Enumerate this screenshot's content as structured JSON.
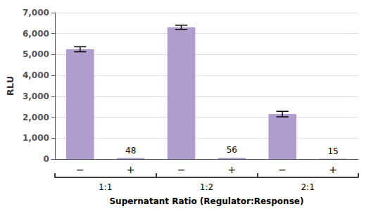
{
  "chart_data": {
    "type": "bar",
    "categories": [
      "−",
      "+",
      "−",
      "+",
      "−",
      "+"
    ],
    "group_labels": [
      "1:1",
      "1:2",
      "2:1"
    ],
    "values": [
      5250,
      48,
      6300,
      56,
      2150,
      15
    ],
    "errors": [
      120,
      0,
      100,
      0,
      130,
      0
    ],
    "value_labels": [
      null,
      "48",
      null,
      "56",
      null,
      "15"
    ],
    "color": "#b09cce",
    "ylabel": "RLU",
    "xlabel": "Supernatant Ratio (Regulator:Response)",
    "ylim": [
      0,
      7000
    ],
    "yticks": [
      0,
      {
        "value": 1000,
        "label": "1,000"
      },
      {
        "value": 2000,
        "label": "2,000"
      },
      {
        "value": 3000,
        "label": "3,000"
      },
      {
        "value": 4000,
        "label": "4,000"
      },
      {
        "value": 5000,
        "label": "5,000"
      },
      {
        "value": 6000,
        "label": "6,000"
      },
      {
        "value": 7000,
        "label": "7,000"
      }
    ],
    "grid": true
  }
}
